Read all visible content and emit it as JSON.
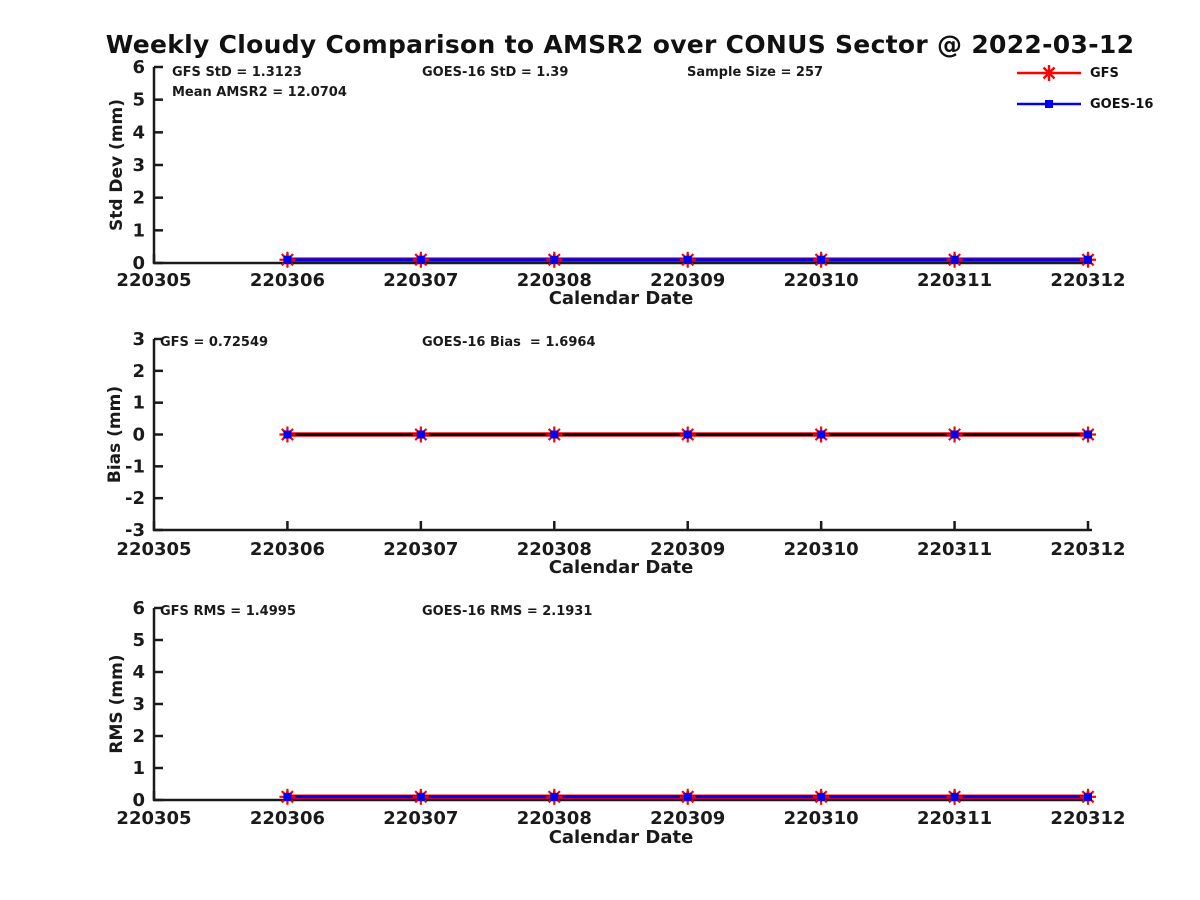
{
  "title": "Weekly Cloudy Comparison to AMSR2 over CONUS Sector @ 2022-03-12",
  "colors": {
    "gfs": "#ff0000",
    "goes16": "#0000ee",
    "axis": "#1a1a1a",
    "reference": "#000000",
    "background": "#ffffff"
  },
  "legend": {
    "items": [
      {
        "label": "GFS",
        "color": "#ff0000",
        "marker": "asterisk"
      },
      {
        "label": "GOES-16",
        "color": "#0000ee",
        "marker": "square"
      }
    ]
  },
  "chart_data": [
    {
      "type": "line",
      "panel": "std_dev",
      "ylabel": "Std Dev (mm)",
      "xlabel": "Calendar Date",
      "ylim": [
        0,
        6
      ],
      "yticks": [
        0,
        1,
        2,
        3,
        4,
        5,
        6
      ],
      "xtick_labels": [
        "220305",
        "220306",
        "220307",
        "220308",
        "220309",
        "220310",
        "220311",
        "220312"
      ],
      "x": [
        "220306",
        "220307",
        "220308",
        "220309",
        "220310",
        "220311",
        "220312"
      ],
      "series": [
        {
          "name": "GFS",
          "color": "#ff0000",
          "marker": "asterisk",
          "values": [
            0.1,
            0.1,
            0.1,
            0.1,
            0.1,
            0.1,
            0.1
          ]
        },
        {
          "name": "GOES-16",
          "color": "#0000ee",
          "marker": "square",
          "values": [
            0.1,
            0.1,
            0.1,
            0.1,
            0.1,
            0.1,
            0.1
          ]
        }
      ],
      "annotations": [
        "GFS StD = 1.3123",
        "Mean AMSR2 = 12.0704",
        "GOES-16 StD = 1.39",
        "Sample Size = 257"
      ],
      "grid": false,
      "legend_position": "outside-top-right"
    },
    {
      "type": "line",
      "panel": "bias",
      "ylabel": "Bias (mm)",
      "xlabel": "Calendar Date",
      "ylim": [
        -3,
        3
      ],
      "yticks": [
        -3,
        -2,
        -1,
        0,
        1,
        2,
        3
      ],
      "xtick_labels": [
        "220305",
        "220306",
        "220307",
        "220308",
        "220309",
        "220310",
        "220311",
        "220312"
      ],
      "x": [
        "220306",
        "220307",
        "220308",
        "220309",
        "220310",
        "220311",
        "220312"
      ],
      "series": [
        {
          "name": "GFS",
          "color": "#ff0000",
          "marker": "asterisk",
          "values": [
            0,
            0,
            0,
            0,
            0,
            0,
            0
          ]
        },
        {
          "name": "GOES-16",
          "color": "#0000ee",
          "marker": "square",
          "values": [
            0,
            0,
            0,
            0,
            0,
            0,
            0
          ]
        }
      ],
      "reference_line": {
        "y": 0,
        "color": "#000000"
      },
      "annotations": [
        "GFS = 0.72549",
        "GOES-16 Bias  = 1.6964"
      ],
      "grid": false
    },
    {
      "type": "line",
      "panel": "rms",
      "ylabel": "RMS (mm)",
      "xlabel": "Calendar Date",
      "ylim": [
        0,
        6
      ],
      "yticks": [
        0,
        1,
        2,
        3,
        4,
        5,
        6
      ],
      "xtick_labels": [
        "220305",
        "220306",
        "220307",
        "220308",
        "220309",
        "220310",
        "220311",
        "220312"
      ],
      "x": [
        "220306",
        "220307",
        "220308",
        "220309",
        "220310",
        "220311",
        "220312"
      ],
      "series": [
        {
          "name": "GFS",
          "color": "#ff0000",
          "marker": "asterisk",
          "values": [
            0.1,
            0.1,
            0.1,
            0.1,
            0.1,
            0.1,
            0.1
          ]
        },
        {
          "name": "GOES-16",
          "color": "#0000ee",
          "marker": "square",
          "values": [
            0.1,
            0.1,
            0.1,
            0.1,
            0.1,
            0.1,
            0.1
          ]
        }
      ],
      "annotations": [
        "GFS RMS = 1.4995",
        "GOES-16 RMS = 2.1931"
      ],
      "grid": false
    }
  ]
}
